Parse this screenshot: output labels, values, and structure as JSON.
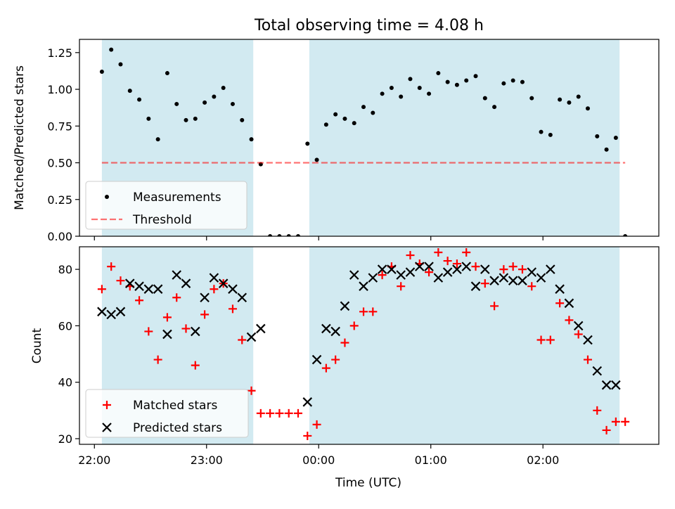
{
  "colors": {
    "shade": "#add8e6",
    "measurement": "#000000",
    "threshold": "#ff0000",
    "matched": "#ff0000",
    "predicted": "#000000"
  },
  "chart_data": [
    {
      "type": "scatter",
      "title": "Total observing time = 4.08 h",
      "xlabel": "",
      "ylabel": "Matched/Predicted stars",
      "xlim": [
        "21:52",
        "03:02"
      ],
      "ylim": [
        0,
        1.34
      ],
      "yticks": [
        0.0,
        0.25,
        0.5,
        0.75,
        1.0,
        1.25
      ],
      "ytick_labels": [
        "0.00",
        "0.25",
        "0.50",
        "0.75",
        "1.00",
        "1.25"
      ],
      "shaded_intervals": [
        [
          "22:04",
          "23:25"
        ],
        [
          "23:55",
          "02:41"
        ]
      ],
      "legend": {
        "placement": "lower-left",
        "entries": [
          "Measurements",
          "Threshold"
        ]
      },
      "series": [
        {
          "name": "Measurements",
          "marker": "dot",
          "x": [
            "22:04",
            "22:09",
            "22:14",
            "22:19",
            "22:24",
            "22:29",
            "22:34",
            "22:39",
            "22:44",
            "22:49",
            "22:54",
            "22:59",
            "23:04",
            "23:09",
            "23:14",
            "23:19",
            "23:24",
            "23:29",
            "23:34",
            "23:39",
            "23:44",
            "23:49",
            "23:54",
            "23:59",
            "24:04",
            "24:09",
            "24:14",
            "24:19",
            "24:24",
            "24:29",
            "24:34",
            "24:39",
            "24:44",
            "24:49",
            "24:54",
            "24:59",
            "25:04",
            "25:09",
            "25:14",
            "25:19",
            "25:24",
            "25:29",
            "25:34",
            "25:39",
            "25:44",
            "25:49",
            "25:54",
            "25:59",
            "26:04",
            "26:09",
            "26:14",
            "26:19",
            "26:24",
            "26:29",
            "26:34",
            "26:39",
            "26:44"
          ],
          "y": [
            1.12,
            1.27,
            1.17,
            0.99,
            0.93,
            0.8,
            0.66,
            1.11,
            0.9,
            0.79,
            0.8,
            0.91,
            0.95,
            1.01,
            0.9,
            0.79,
            0.66,
            0.49,
            0.0,
            0.0,
            0.0,
            0.0,
            0.63,
            0.52,
            0.76,
            0.83,
            0.8,
            0.77,
            0.88,
            0.84,
            0.97,
            1.01,
            0.95,
            1.07,
            1.01,
            0.97,
            1.11,
            1.05,
            1.03,
            1.06,
            1.09,
            0.94,
            0.88,
            1.04,
            1.06,
            1.05,
            0.94,
            0.71,
            0.69,
            0.93,
            0.91,
            0.95,
            0.87,
            0.68,
            0.59,
            0.67,
            0.0
          ]
        },
        {
          "name": "Threshold",
          "style": "dashed",
          "x": [
            "22:04",
            "26:44"
          ],
          "y": [
            0.5,
            0.5
          ]
        }
      ]
    },
    {
      "type": "scatter",
      "title": "",
      "xlabel": "Time (UTC)",
      "ylabel": "Count",
      "xlim": [
        "21:52",
        "03:02"
      ],
      "ylim": [
        18,
        88
      ],
      "yticks": [
        20,
        40,
        60,
        80
      ],
      "xticks": [
        "22:00",
        "23:00",
        "00:00",
        "01:00",
        "02:00"
      ],
      "shaded_intervals": [
        [
          "22:04",
          "23:25"
        ],
        [
          "23:55",
          "02:41"
        ]
      ],
      "legend": {
        "placement": "lower-left",
        "entries": [
          "Matched stars",
          "Predicted stars"
        ]
      },
      "series": [
        {
          "name": "Matched stars",
          "marker": "plus",
          "x": [
            "22:04",
            "22:09",
            "22:14",
            "22:19",
            "22:24",
            "22:29",
            "22:34",
            "22:39",
            "22:44",
            "22:49",
            "22:54",
            "22:59",
            "23:04",
            "23:09",
            "23:14",
            "23:19",
            "23:24",
            "23:29",
            "23:34",
            "23:39",
            "23:44",
            "23:49",
            "23:54",
            "23:59",
            "24:04",
            "24:09",
            "24:14",
            "24:19",
            "24:24",
            "24:29",
            "24:34",
            "24:39",
            "24:44",
            "24:49",
            "24:54",
            "24:59",
            "25:04",
            "25:09",
            "25:14",
            "25:19",
            "25:24",
            "25:29",
            "25:34",
            "25:39",
            "25:44",
            "25:49",
            "25:54",
            "25:59",
            "26:04",
            "26:09",
            "26:14",
            "26:19",
            "26:24",
            "26:29",
            "26:34",
            "26:39",
            "26:44"
          ],
          "y": [
            73,
            81,
            76,
            74,
            69,
            58,
            48,
            63,
            70,
            59,
            46,
            64,
            73,
            75,
            66,
            55,
            37,
            29,
            29,
            29,
            29,
            29,
            21,
            25,
            45,
            48,
            54,
            60,
            65,
            65,
            78,
            81,
            74,
            85,
            82,
            79,
            86,
            83,
            82,
            86,
            81,
            75,
            67,
            80,
            81,
            80,
            74,
            55,
            55,
            68,
            62,
            57,
            48,
            30,
            23,
            26,
            26
          ]
        },
        {
          "name": "Predicted stars",
          "marker": "x",
          "x": [
            "22:04",
            "22:09",
            "22:14",
            "22:19",
            "22:24",
            "22:29",
            "22:34",
            "22:39",
            "22:44",
            "22:49",
            "22:54",
            "22:59",
            "23:04",
            "23:09",
            "23:14",
            "23:19",
            "23:24",
            "23:29",
            "23:54",
            "23:59",
            "24:04",
            "24:09",
            "24:14",
            "24:19",
            "24:24",
            "24:29",
            "24:34",
            "24:39",
            "24:44",
            "24:49",
            "24:54",
            "24:59",
            "25:04",
            "25:09",
            "25:14",
            "25:19",
            "25:24",
            "25:29",
            "25:34",
            "25:39",
            "25:44",
            "25:49",
            "25:54",
            "25:59",
            "26:04",
            "26:09",
            "26:14",
            "26:19",
            "26:24",
            "26:29",
            "26:34",
            "26:39"
          ],
          "y": [
            65,
            64,
            65,
            75,
            74,
            73,
            73,
            57,
            78,
            75,
            58,
            70,
            77,
            75,
            73,
            70,
            56,
            59,
            33,
            48,
            59,
            58,
            67,
            78,
            74,
            77,
            80,
            80,
            78,
            79,
            81,
            81,
            77,
            79,
            80,
            81,
            74,
            80,
            76,
            77,
            76,
            76,
            79,
            77,
            80,
            73,
            68,
            60,
            55,
            44,
            39,
            39
          ]
        }
      ]
    }
  ]
}
